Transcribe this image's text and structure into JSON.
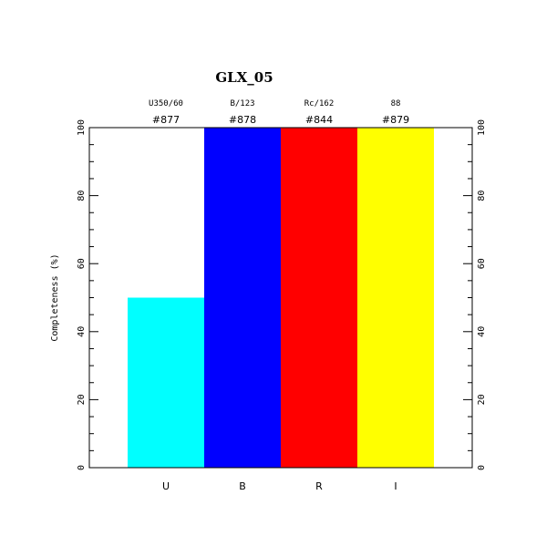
{
  "chart_data": {
    "type": "bar",
    "title": "GLX_05",
    "ylabel": "Completeness (%)",
    "xlabel": "",
    "ylim": [
      0,
      100
    ],
    "yticks": [
      0,
      20,
      40,
      60,
      80,
      100
    ],
    "categories": [
      "U",
      "B",
      "R",
      "I"
    ],
    "values": [
      50,
      100,
      100,
      100
    ],
    "filters": [
      "U350/60",
      "B/123",
      "Rc/162",
      "88"
    ],
    "ids": [
      "#877",
      "#878",
      "#844",
      "#879"
    ],
    "colors": [
      "#00ffff",
      "#0000ff",
      "#ff0000",
      "#ffff00"
    ],
    "grid": false,
    "legend": "none"
  }
}
